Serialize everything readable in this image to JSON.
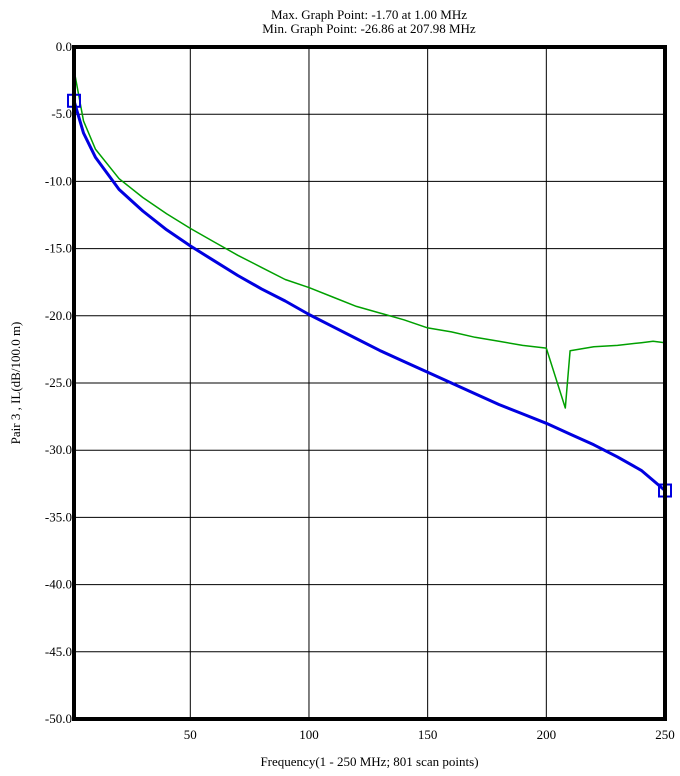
{
  "header": {
    "max_point": "Max. Graph Point: -1.70 at 1.00 MHz",
    "min_point": "Min. Graph Point: -26.86 at 207.98 MHz"
  },
  "chart_data": {
    "type": "line",
    "title": "",
    "xlabel": "Frequency(1 - 250 MHz; 801 scan points)",
    "ylabel": "Pair 3 , IL(dB/100.0 m)",
    "xlim": [
      1,
      250
    ],
    "ylim": [
      -50,
      0
    ],
    "x_ticks": [
      50,
      100,
      150,
      200,
      250
    ],
    "x_tick_labels": [
      "50",
      "100",
      "150",
      "200",
      "250"
    ],
    "y_ticks": [
      0,
      -5,
      -10,
      -15,
      -20,
      -25,
      -30,
      -35,
      -40,
      -45,
      -50
    ],
    "y_tick_labels": [
      "0.0",
      "-5.0",
      "-10.0",
      "-15.0",
      "-20.0",
      "-25.0",
      "-30.0",
      "-35.0",
      "-40.0",
      "-45.0",
      "-50.0"
    ],
    "grid": true,
    "legend": "none",
    "series": [
      {
        "color": "#00a000",
        "x": [
          1,
          5,
          10,
          20,
          30,
          40,
          50,
          60,
          70,
          80,
          90,
          100,
          110,
          120,
          130,
          140,
          150,
          160,
          170,
          180,
          190,
          200,
          207.98,
          210,
          220,
          230,
          240,
          245,
          250
        ],
        "values": [
          -1.7,
          -5.5,
          -7.6,
          -9.8,
          -11.2,
          -12.4,
          -13.5,
          -14.5,
          -15.5,
          -16.4,
          -17.3,
          -17.9,
          -18.6,
          -19.3,
          -19.8,
          -20.3,
          -20.9,
          -21.2,
          -21.6,
          -21.9,
          -22.2,
          -22.4,
          -26.86,
          -22.6,
          -22.3,
          -22.2,
          -22.0,
          -21.9,
          -22.0
        ]
      },
      {
        "color": "#0000e0",
        "x": [
          1,
          5,
          10,
          20,
          30,
          40,
          50,
          60,
          70,
          80,
          90,
          100,
          110,
          120,
          130,
          140,
          150,
          160,
          170,
          180,
          190,
          200,
          210,
          220,
          230,
          240,
          250
        ],
        "values": [
          -4.0,
          -6.4,
          -8.2,
          -10.6,
          -12.2,
          -13.6,
          -14.8,
          -15.9,
          -17.0,
          -18.0,
          -18.9,
          -19.9,
          -20.8,
          -21.7,
          -22.6,
          -23.4,
          -24.2,
          -25.0,
          -25.8,
          -26.6,
          -27.3,
          -28.0,
          -28.8,
          -29.6,
          -30.5,
          -31.5,
          -33.0
        ]
      }
    ]
  }
}
